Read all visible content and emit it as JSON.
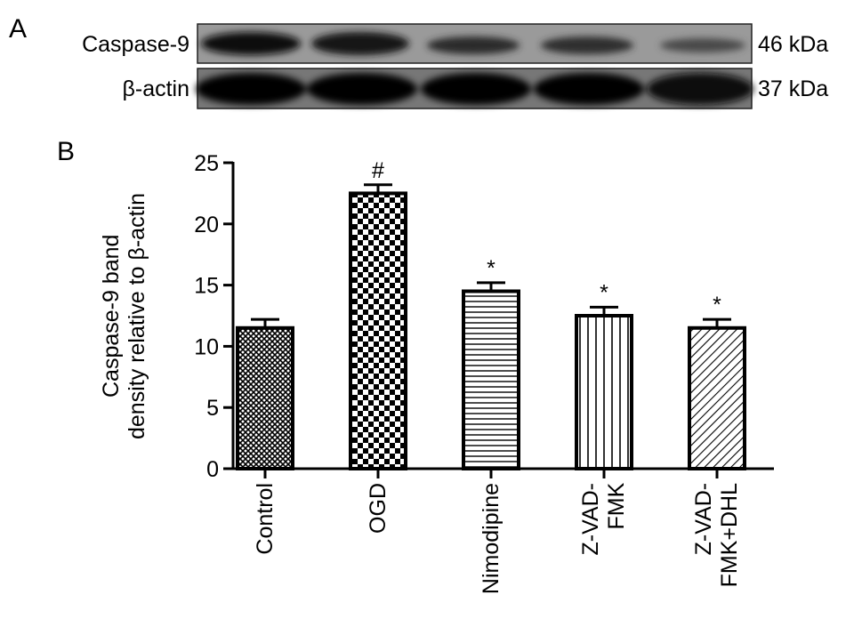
{
  "panel_a": {
    "label": "A",
    "rows": [
      {
        "name": "Caspase-9",
        "size": "46 kDa"
      },
      {
        "name": "β-actin",
        "size": "37 kDa"
      }
    ]
  },
  "chart_data": {
    "type": "bar",
    "panel_label": "B",
    "y_label": "Caspase-9 band\ndensity relative to β-actin",
    "categories": [
      "Control",
      "OGD",
      "Nimodipine",
      "Z-VAD-\nFMK",
      "Z-VAD-\nFMK+DHL"
    ],
    "values": [
      11.5,
      22.5,
      14.5,
      12.5,
      11.5
    ],
    "errors": [
      0.7,
      0.7,
      0.7,
      0.7,
      0.7
    ],
    "annotations": [
      null,
      "#",
      "*",
      "*",
      "*"
    ],
    "patterns": [
      "crosshatch",
      "checker",
      "horizontal",
      "vertical",
      "diagonal"
    ],
    "color": "#000000",
    "ylim": [
      0,
      25
    ],
    "yticks": [
      0,
      5,
      10,
      15,
      20,
      25
    ],
    "grid": false
  }
}
